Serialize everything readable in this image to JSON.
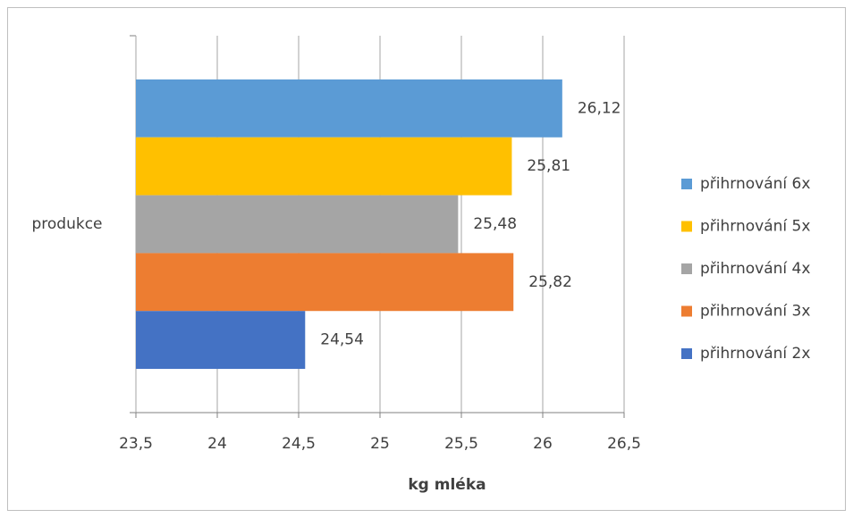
{
  "chart_data": {
    "type": "bar",
    "orientation": "horizontal",
    "categories": [
      "produkce"
    ],
    "x_label": "kg mléka",
    "series": [
      {
        "name": "přihrnování 6x",
        "color": "#5b9bd5",
        "values": [
          26.12
        ],
        "value_labels": [
          "26,12"
        ]
      },
      {
        "name": "přihrnování 5x",
        "color": "#ffc000",
        "values": [
          25.81
        ],
        "value_labels": [
          "25,81"
        ]
      },
      {
        "name": "přihrnování 4x",
        "color": "#a5a5a5",
        "values": [
          25.48
        ],
        "value_labels": [
          "25,48"
        ]
      },
      {
        "name": "přihrnování 3x",
        "color": "#ed7d31",
        "values": [
          25.82
        ],
        "value_labels": [
          "25,82"
        ]
      },
      {
        "name": "přihrnování 2x",
        "color": "#4472c4",
        "values": [
          24.54
        ],
        "value_labels": [
          "24,54"
        ]
      }
    ],
    "xlim": [
      23.5,
      26.5
    ],
    "xticks": [
      {
        "value": 23.5,
        "label": "23,5"
      },
      24,
      {
        "value": 24.5,
        "label": "24,5"
      },
      25,
      {
        "value": 25.5,
        "label": "25,5"
      },
      26,
      {
        "value": 26.5,
        "label": "26,5"
      }
    ],
    "grid": true,
    "legend": "right"
  }
}
